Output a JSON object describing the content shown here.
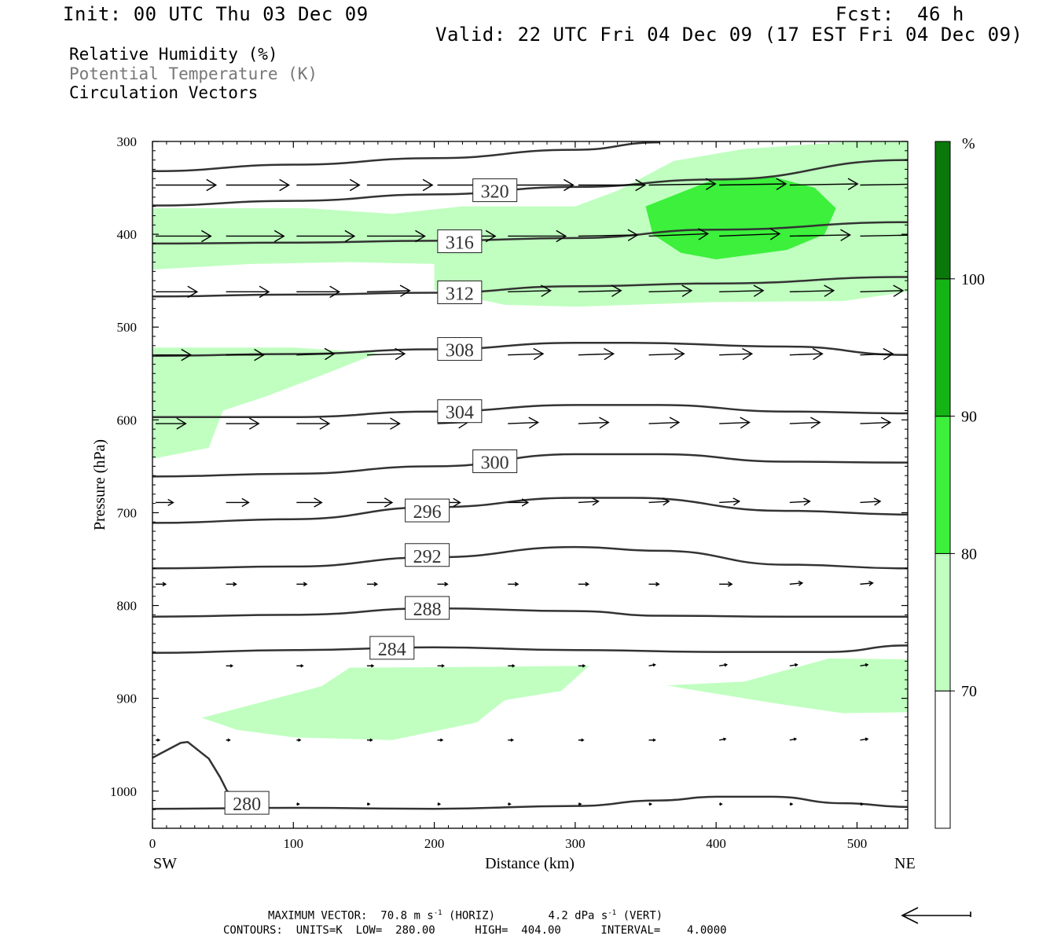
{
  "header": {
    "init": "Init: 00 UTC Thu 03 Dec 09",
    "fcst_label": "Fcst:",
    "fcst_value": "46 h",
    "valid": "Valid: 22 UTC Fri 04 Dec 09 (17 EST Fri 04 Dec 09)"
  },
  "fields": {
    "rh": "Relative Humidity (%)",
    "theta": "Potential Temperature (K)",
    "vectors": "Circulation Vectors"
  },
  "footer": {
    "max_vector_label": "MAXIMUM VECTOR:",
    "max_horiz": "70.8 m s",
    "horiz_tag": "(HORIZ)",
    "max_vert": "4.2 dPa s",
    "vert_tag": "(VERT)",
    "exp": "-1",
    "contours": "CONTOURS:  UNITS=K  LOW=  280.00      HIGH=  404.00      INTERVAL=    4.0000"
  },
  "colors": {
    "rh70": "#c0ffc0",
    "rh80": "#3cf03c",
    "rh90": "#14b414",
    "rh100": "#0a780a",
    "contour": "#333333"
  },
  "chart_data": {
    "type": "cross-section",
    "xlabel": "Distance (km)",
    "ylabel": "Pressure (hPa)",
    "x_left_label": "SW",
    "x_right_label": "NE",
    "xlim": [
      0,
      536
    ],
    "ylim": [
      1040,
      300
    ],
    "x_ticks": [
      0,
      100,
      200,
      300,
      400,
      500
    ],
    "y_ticks": [
      300,
      400,
      500,
      600,
      700,
      800,
      900,
      1000
    ],
    "colorbar": {
      "unit": "%",
      "levels": [
        70,
        80,
        90,
        100
      ]
    },
    "theta_contours": [
      {
        "label": "280",
        "label_at": [
          67,
          1013
        ],
        "points": [
          [
            0,
            1019
          ],
          [
            100,
            1018
          ],
          [
            200,
            1019
          ],
          [
            300,
            1016
          ],
          [
            360,
            1010
          ],
          [
            400,
            1006
          ],
          [
            440,
            1006
          ],
          [
            490,
            1013
          ],
          [
            536,
            1017
          ]
        ]
      },
      {
        "label": "284",
        "label_at": [
          170,
          846
        ],
        "points": [
          [
            0,
            851
          ],
          [
            100,
            848
          ],
          [
            200,
            845
          ],
          [
            300,
            848
          ],
          [
            400,
            850
          ],
          [
            480,
            850
          ],
          [
            536,
            843
          ]
        ]
      },
      {
        "label": "288",
        "label_at": [
          195,
          803
        ],
        "points": [
          [
            0,
            812
          ],
          [
            100,
            810
          ],
          [
            200,
            803
          ],
          [
            300,
            806
          ],
          [
            360,
            811
          ],
          [
            450,
            812
          ],
          [
            536,
            812
          ]
        ]
      },
      {
        "label": "292",
        "label_at": [
          195,
          746
        ],
        "points": [
          [
            0,
            760
          ],
          [
            100,
            758
          ],
          [
            200,
            748
          ],
          [
            300,
            737
          ],
          [
            360,
            741
          ],
          [
            450,
            756
          ],
          [
            536,
            760
          ]
        ]
      },
      {
        "label": "296",
        "label_at": [
          195,
          698
        ],
        "points": [
          [
            0,
            711
          ],
          [
            100,
            707
          ],
          [
            200,
            694
          ],
          [
            300,
            684
          ],
          [
            340,
            684
          ],
          [
            450,
            698
          ],
          [
            536,
            702
          ]
        ]
      },
      {
        "label": "300",
        "label_at": [
          243,
          645
        ],
        "points": [
          [
            0,
            661
          ],
          [
            100,
            658
          ],
          [
            200,
            650
          ],
          [
            300,
            637
          ],
          [
            360,
            637
          ],
          [
            450,
            645
          ],
          [
            536,
            646
          ]
        ]
      },
      {
        "label": "304",
        "label_at": [
          218,
          591
        ],
        "points": [
          [
            0,
            597
          ],
          [
            100,
            597
          ],
          [
            200,
            591
          ],
          [
            300,
            584
          ],
          [
            360,
            584
          ],
          [
            450,
            591
          ],
          [
            536,
            593
          ]
        ]
      },
      {
        "label": "308",
        "label_at": [
          218,
          524
        ],
        "points": [
          [
            0,
            531
          ],
          [
            100,
            529
          ],
          [
            200,
            524
          ],
          [
            300,
            517
          ],
          [
            340,
            517
          ],
          [
            450,
            521
          ],
          [
            536,
            530
          ]
        ]
      },
      {
        "label": "312",
        "label_at": [
          218,
          463
        ],
        "points": [
          [
            0,
            467
          ],
          [
            100,
            465
          ],
          [
            200,
            463
          ],
          [
            300,
            456
          ],
          [
            400,
            453
          ],
          [
            536,
            446
          ]
        ]
      },
      {
        "label": "316",
        "label_at": [
          218,
          408
        ],
        "points": [
          [
            0,
            410
          ],
          [
            100,
            409
          ],
          [
            200,
            407
          ],
          [
            300,
            404
          ],
          [
            400,
            395
          ],
          [
            536,
            387
          ]
        ]
      },
      {
        "label": "320",
        "label_at": [
          243,
          353
        ],
        "points": [
          [
            0,
            369
          ],
          [
            100,
            364
          ],
          [
            200,
            357
          ],
          [
            300,
            349
          ],
          [
            400,
            341
          ],
          [
            536,
            320
          ]
        ]
      },
      {
        "label": "",
        "label_at": null,
        "points": [
          [
            0,
            332
          ],
          [
            100,
            325
          ],
          [
            200,
            318
          ],
          [
            300,
            309
          ],
          [
            360,
            301
          ]
        ]
      }
    ],
    "rh_regions": [
      {
        "level": 70,
        "points": [
          [
            0,
            372
          ],
          [
            110,
            372
          ],
          [
            170,
            378
          ],
          [
            220,
            370
          ],
          [
            300,
            370
          ],
          [
            330,
            353
          ],
          [
            370,
            321
          ],
          [
            420,
            308
          ],
          [
            536,
            296
          ],
          [
            536,
            462
          ],
          [
            490,
            472
          ],
          [
            400,
            473
          ],
          [
            300,
            478
          ],
          [
            250,
            476
          ],
          [
            200,
            460
          ],
          [
            200,
            432
          ],
          [
            140,
            430
          ],
          [
            70,
            432
          ],
          [
            0,
            438
          ]
        ]
      },
      {
        "level": 80,
        "points": [
          [
            350,
            370
          ],
          [
            370,
            358
          ],
          [
            400,
            340
          ],
          [
            440,
            338
          ],
          [
            470,
            350
          ],
          [
            485,
            372
          ],
          [
            477,
            400
          ],
          [
            450,
            417
          ],
          [
            400,
            427
          ],
          [
            375,
            420
          ],
          [
            355,
            400
          ]
        ]
      },
      {
        "level": 70,
        "points": [
          [
            0,
            522
          ],
          [
            100,
            522
          ],
          [
            160,
            528
          ],
          [
            120,
            552
          ],
          [
            80,
            575
          ],
          [
            50,
            590
          ],
          [
            40,
            630
          ],
          [
            0,
            642
          ]
        ]
      },
      {
        "level": 70,
        "points": [
          [
            35,
            921
          ],
          [
            80,
            903
          ],
          [
            120,
            887
          ],
          [
            140,
            867
          ],
          [
            240,
            866
          ],
          [
            310,
            865
          ],
          [
            290,
            892
          ],
          [
            250,
            902
          ],
          [
            230,
            926
          ],
          [
            170,
            945
          ],
          [
            100,
            942
          ],
          [
            60,
            934
          ]
        ]
      },
      {
        "level": 70,
        "points": [
          [
            365,
            886
          ],
          [
            420,
            882
          ],
          [
            480,
            857
          ],
          [
            536,
            858
          ],
          [
            536,
            915
          ],
          [
            490,
            916
          ],
          [
            440,
            905
          ],
          [
            380,
            890
          ]
        ]
      }
    ],
    "vector_rows": [
      {
        "p": 347,
        "x": [
          0,
          50,
          100,
          150,
          200,
          250,
          300,
          350,
          400,
          450,
          500
        ],
        "u": [
          48,
          50,
          50,
          52,
          52,
          52,
          53,
          53,
          53,
          54,
          54
        ],
        "w": [
          0,
          0,
          0,
          0,
          0,
          0,
          0,
          1,
          1,
          1,
          1
        ]
      },
      {
        "p": 402,
        "x": [
          0,
          50,
          100,
          150,
          200,
          250,
          300,
          350,
          400,
          450,
          500
        ],
        "u": [
          44,
          46,
          46,
          46,
          46,
          46,
          47,
          47,
          48,
          48,
          47
        ],
        "w": [
          0,
          0,
          0,
          0,
          0,
          0,
          1,
          2,
          2,
          1,
          1
        ]
      },
      {
        "p": 462,
        "x": [
          0,
          50,
          100,
          150,
          200,
          250,
          300,
          350,
          400,
          450,
          500
        ],
        "u": [
          33,
          34,
          34,
          34,
          34,
          34,
          34,
          34,
          35,
          35,
          34
        ],
        "w": [
          0,
          0,
          0,
          1,
          1,
          1,
          1,
          1,
          1,
          1,
          1
        ]
      },
      {
        "p": 530,
        "x": [
          0,
          50,
          100,
          150,
          200,
          250,
          300,
          350,
          400,
          450,
          500
        ],
        "u": [
          28,
          30,
          30,
          30,
          28,
          28,
          28,
          28,
          26,
          26,
          26
        ],
        "w": [
          0,
          0,
          1,
          1,
          1,
          1,
          1,
          1,
          1,
          1,
          1
        ]
      },
      {
        "p": 604,
        "x": [
          0,
          50,
          100,
          150,
          200,
          250,
          300,
          350,
          400,
          450,
          500
        ],
        "u": [
          24,
          26,
          26,
          26,
          24,
          24,
          24,
          24,
          24,
          24,
          24
        ],
        "w": [
          0,
          0,
          0,
          0,
          1,
          1,
          1,
          1,
          1,
          1,
          1
        ]
      },
      {
        "p": 689,
        "x": [
          0,
          50,
          100,
          150,
          200,
          250,
          300,
          350,
          400,
          450,
          500
        ],
        "u": [
          14,
          18,
          20,
          20,
          18,
          16,
          16,
          16,
          16,
          16,
          16
        ],
        "w": [
          0,
          0,
          0,
          0,
          0,
          0,
          1,
          1,
          1,
          1,
          1
        ]
      },
      {
        "p": 777,
        "x": [
          0,
          50,
          100,
          150,
          200,
          250,
          300,
          350,
          400,
          450,
          500
        ],
        "u": [
          8,
          8,
          8,
          8,
          8,
          8,
          8,
          8,
          10,
          10,
          10
        ],
        "w": [
          0,
          0,
          0,
          0,
          0,
          0,
          0,
          0,
          0,
          1,
          1
        ]
      },
      {
        "p": 865,
        "x": [
          50,
          100,
          150,
          200,
          250,
          300,
          350,
          400,
          450,
          500
        ],
        "u": [
          5,
          5,
          5,
          5,
          5,
          5,
          5,
          6,
          6,
          6
        ],
        "w": [
          0,
          0,
          0,
          0,
          0,
          0,
          1,
          1,
          1,
          1
        ]
      },
      {
        "p": 945,
        "x": [
          0,
          50,
          100,
          150,
          200,
          250,
          300,
          350,
          400,
          450,
          500
        ],
        "u": [
          3,
          3,
          3,
          4,
          4,
          4,
          4,
          5,
          5,
          5,
          6
        ],
        "w": [
          0,
          0,
          0,
          0,
          0,
          0,
          0,
          0,
          1,
          1,
          1
        ]
      },
      {
        "p": 1014,
        "x": [
          50,
          100,
          150,
          200,
          250,
          300,
          350,
          400,
          450,
          500
        ],
        "u": [
          2,
          2,
          2,
          2,
          2,
          2,
          2,
          2,
          2,
          2
        ],
        "w": [
          0,
          0,
          0,
          0,
          0,
          0,
          0,
          0,
          0,
          0
        ]
      }
    ],
    "terrain": [
      [
        0,
        964
      ],
      [
        20,
        948
      ],
      [
        25,
        947
      ],
      [
        40,
        965
      ],
      [
        48,
        985
      ],
      [
        53,
        1000
      ],
      [
        60,
        1006
      ]
    ]
  }
}
